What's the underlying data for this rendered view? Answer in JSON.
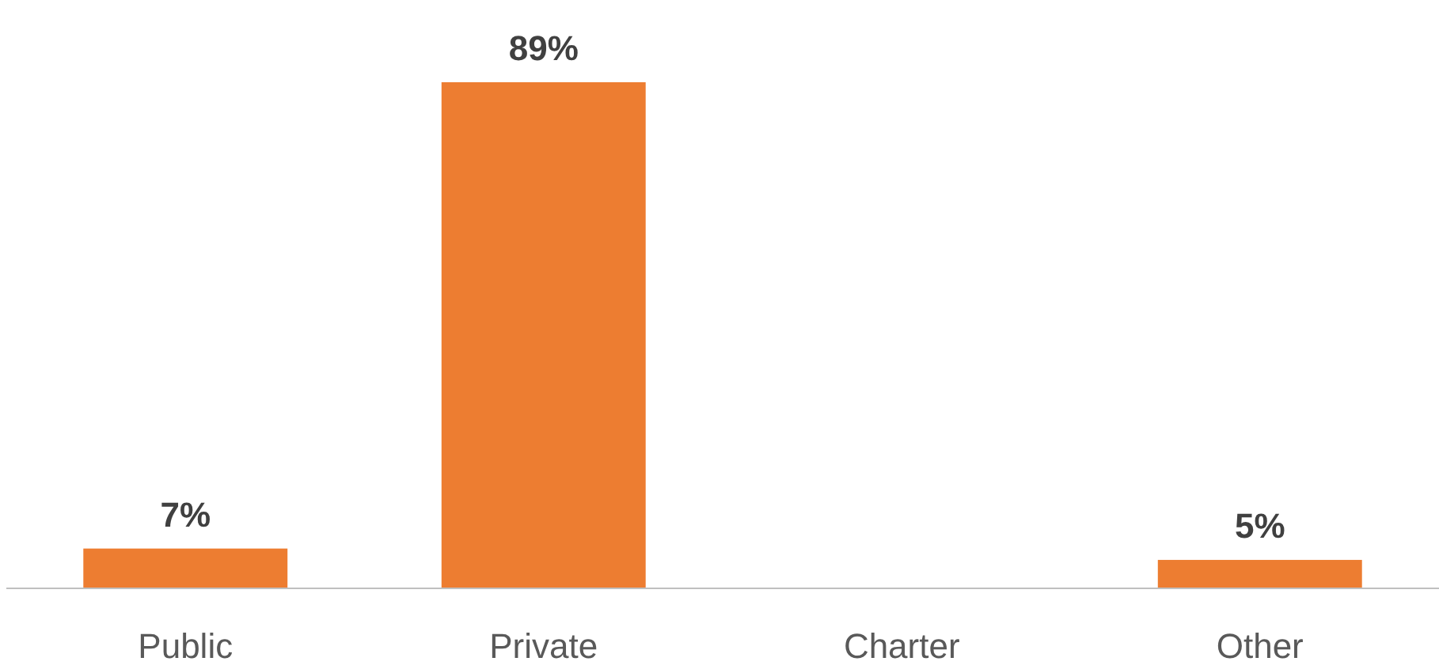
{
  "chart_data": {
    "type": "bar",
    "categories": [
      "Public",
      "Private",
      "Charter",
      "Other"
    ],
    "values": [
      7,
      89,
      null,
      5
    ],
    "value_labels": [
      "7%",
      "89%",
      null,
      "5%"
    ],
    "color": "#ed7d31"
  }
}
